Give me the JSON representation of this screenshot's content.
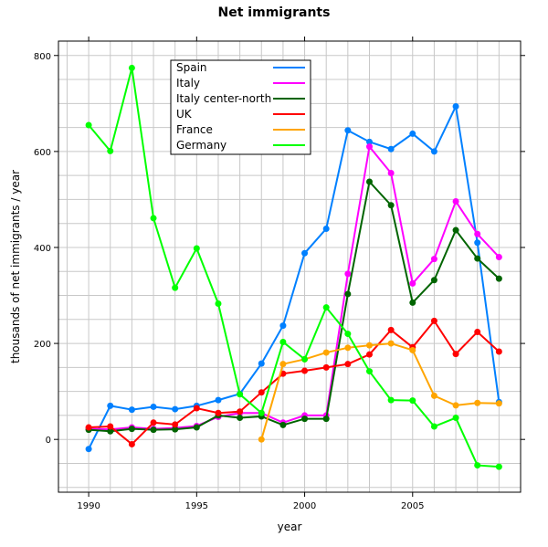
{
  "chart_data": {
    "type": "line",
    "title": "Net immigrants",
    "xlabel": "year",
    "ylabel": "thousands of net immigrants / year",
    "xlim": [
      1988.6,
      2010.0
    ],
    "ylim": [
      -110,
      830
    ],
    "x_ticks": [
      1990,
      1995,
      2000,
      2005
    ],
    "y_ticks": [
      0,
      200,
      400,
      600,
      800
    ],
    "grid": true,
    "legend_position": "top-left",
    "series": [
      {
        "name": "Spain",
        "color": "#0080ff",
        "x": [
          1990,
          1991,
          1992,
          1993,
          1994,
          1995,
          1996,
          1997,
          1998,
          1999,
          2000,
          2001,
          2002,
          2003,
          2004,
          2005,
          2006,
          2007,
          2008,
          2009
        ],
        "values": [
          -20,
          70,
          62,
          68,
          63,
          70,
          82,
          95,
          158,
          237,
          388,
          439,
          644,
          620,
          605,
          637,
          600,
          694,
          410,
          78
        ]
      },
      {
        "name": "Italy",
        "color": "#ff00ff",
        "x": [
          1990,
          1991,
          1992,
          1993,
          1994,
          1995,
          1996,
          1997,
          1998,
          1999,
          2000,
          2001,
          2002,
          2003,
          2004,
          2005,
          2006,
          2007,
          2008,
          2009
        ],
        "values": [
          22,
          21,
          25,
          22,
          24,
          28,
          47,
          55,
          55,
          35,
          50,
          50,
          345,
          610,
          555,
          325,
          376,
          496,
          428,
          380
        ]
      },
      {
        "name": "Italy center-north",
        "color": "#006400",
        "x": [
          1990,
          1991,
          1992,
          1993,
          1994,
          1995,
          1996,
          1997,
          1998,
          1999,
          2000,
          2001,
          2002,
          2003,
          2004,
          2005,
          2006,
          2007,
          2008,
          2009
        ],
        "values": [
          20,
          17,
          22,
          20,
          21,
          25,
          50,
          45,
          48,
          30,
          43,
          43,
          303,
          537,
          488,
          285,
          332,
          436,
          377,
          335
        ]
      },
      {
        "name": "UK",
        "color": "#ff0000",
        "x": [
          1990,
          1991,
          1992,
          1993,
          1994,
          1995,
          1996,
          1997,
          1998,
          1999,
          2000,
          2001,
          2002,
          2003,
          2004,
          2005,
          2006,
          2007,
          2008,
          2009
        ],
        "values": [
          25,
          27,
          -10,
          35,
          31,
          65,
          55,
          58,
          98,
          137,
          143,
          150,
          157,
          177,
          228,
          192,
          247,
          178,
          224,
          183
        ]
      },
      {
        "name": "France",
        "color": "#ffa500",
        "x": [
          1998,
          1999,
          2000,
          2001,
          2002,
          2003,
          2004,
          2005,
          2006,
          2007,
          2008,
          2009
        ],
        "values": [
          0,
          157,
          167,
          181,
          191,
          196,
          200,
          186,
          91,
          71,
          76,
          75
        ]
      },
      {
        "name": "Germany",
        "color": "#00ff00",
        "x": [
          1990,
          1991,
          1992,
          1993,
          1994,
          1995,
          1996,
          1997,
          1998,
          1999,
          2000,
          2001,
          2002,
          2003,
          2004,
          2005,
          2006,
          2007,
          2008,
          2009
        ],
        "values": [
          655,
          601,
          774,
          461,
          316,
          398,
          283,
          94,
          55,
          203,
          167,
          275,
          220,
          142,
          82,
          81,
          27,
          45,
          -54,
          -57
        ]
      }
    ]
  }
}
